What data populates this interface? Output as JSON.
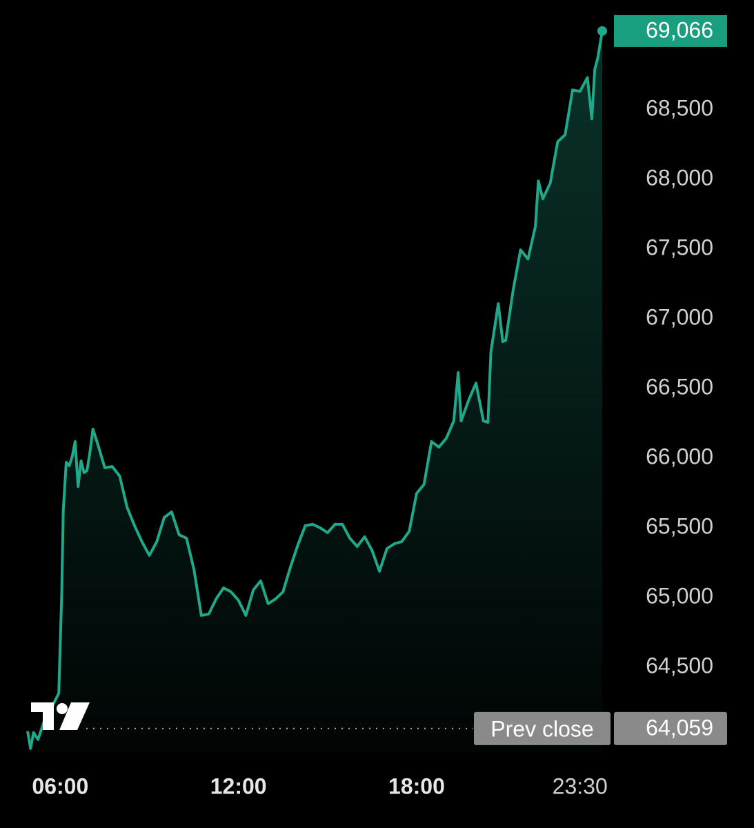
{
  "chart_data": {
    "type": "area-line",
    "color": "#1fa88a",
    "x": [
      4.9,
      5.0,
      5.1,
      5.25,
      5.5,
      5.75,
      5.95,
      6.05,
      6.1,
      6.2,
      6.3,
      6.4,
      6.5,
      6.6,
      6.7,
      6.8,
      6.9,
      7.0,
      7.1,
      7.25,
      7.5,
      7.75,
      8.0,
      8.25,
      8.5,
      8.75,
      9.0,
      9.25,
      9.5,
      9.75,
      10.0,
      10.25,
      10.5,
      10.75,
      11.0,
      11.25,
      11.5,
      11.75,
      12.0,
      12.25,
      12.5,
      12.75,
      13.0,
      13.25,
      13.5,
      13.75,
      14.0,
      14.25,
      14.5,
      14.75,
      15.0,
      15.25,
      15.5,
      15.75,
      16.0,
      16.25,
      16.5,
      16.75,
      17.0,
      17.25,
      17.5,
      17.75,
      18.0,
      18.25,
      18.5,
      18.75,
      19.0,
      19.25,
      19.4,
      19.5,
      19.75,
      20.0,
      20.25,
      20.4,
      20.5,
      20.75,
      20.9,
      21.0,
      21.25,
      21.5,
      21.75,
      22.0,
      22.1,
      22.25,
      22.5,
      22.75,
      23.0,
      23.25,
      23.5,
      23.75,
      23.9,
      24.0,
      24.1,
      24.25
    ],
    "values": [
      64040,
      63916,
      64030,
      63980,
      64139,
      64228,
      64312,
      65030,
      65624,
      65970,
      65945,
      66010,
      66119,
      65797,
      65980,
      65896,
      65911,
      66044,
      66208,
      66109,
      65931,
      65940,
      65871,
      65648,
      65515,
      65401,
      65302,
      65401,
      65574,
      65614,
      65450,
      65426,
      65203,
      64871,
      64881,
      64990,
      65069,
      65040,
      64980,
      64871,
      65054,
      65119,
      64955,
      64990,
      65040,
      65218,
      65376,
      65515,
      65525,
      65500,
      65465,
      65525,
      65525,
      65426,
      65366,
      65436,
      65337,
      65188,
      65351,
      65386,
      65401,
      65475,
      65747,
      65812,
      66119,
      66079,
      66143,
      66267,
      66614,
      66267,
      66416,
      66539,
      66267,
      66257,
      66762,
      67109,
      66836,
      66846,
      67208,
      67495,
      67430,
      67663,
      67990,
      67861,
      67975,
      68272,
      68321,
      68643,
      68633,
      68732,
      68435,
      68792,
      68871,
      69066
    ],
    "last_label": "69,066",
    "prev_close": {
      "label": "Prev close",
      "value": 64059,
      "value_label": "64,059"
    },
    "xlim": [
      4.9,
      24.25
    ],
    "ylim": [
      63890,
      69140
    ],
    "xticks": [
      {
        "value": 6,
        "label": "06:00"
      },
      {
        "value": 12,
        "label": "12:00"
      },
      {
        "value": 18,
        "label": "18:00"
      },
      {
        "value": 23.5,
        "label": "23:30"
      }
    ],
    "yticks": [
      {
        "value": 64500,
        "label": "64,500"
      },
      {
        "value": 65000,
        "label": "65,000"
      },
      {
        "value": 65500,
        "label": "65,500"
      },
      {
        "value": 66000,
        "label": "66,000"
      },
      {
        "value": 66500,
        "label": "66,500"
      },
      {
        "value": 67000,
        "label": "67,000"
      },
      {
        "value": 67500,
        "label": "67,500"
      },
      {
        "value": 68000,
        "label": "68,000"
      },
      {
        "value": 68500,
        "label": "68,500"
      }
    ]
  }
}
